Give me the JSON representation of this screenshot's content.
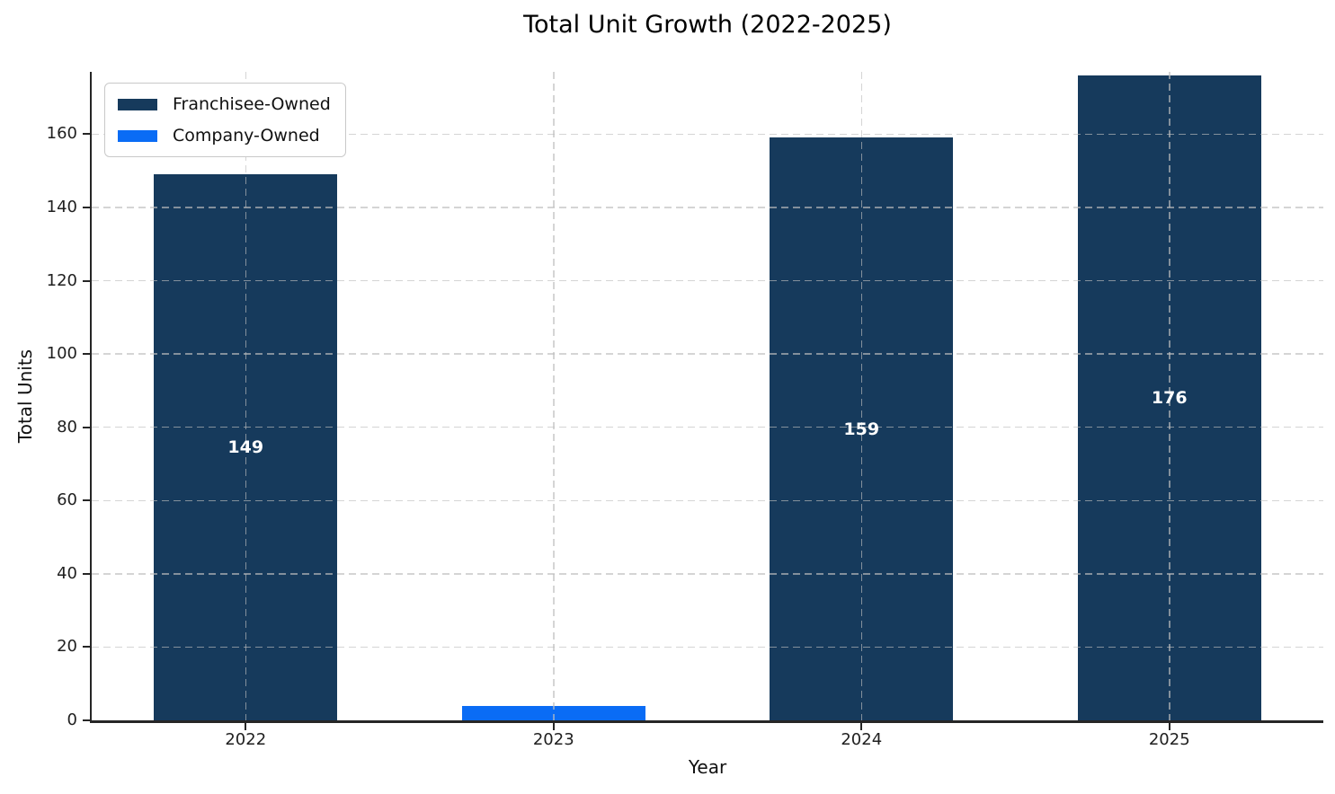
{
  "chart_data": {
    "type": "bar",
    "title": "Total Unit Growth (2022-2025)",
    "xlabel": "Year",
    "ylabel": "Total Units",
    "categories": [
      "2022",
      "2023",
      "2024",
      "2025"
    ],
    "series": [
      {
        "name": "Franchisee-Owned",
        "color": "#163a5c",
        "values": [
          149,
          null,
          159,
          176
        ]
      },
      {
        "name": "Company-Owned",
        "color": "#0a6cf5",
        "values": [
          null,
          4,
          null,
          null
        ]
      }
    ],
    "bar_value_labels": [
      "149",
      "",
      "159",
      "176"
    ],
    "value_label_color": "#ffffff",
    "yticks": [
      0,
      20,
      40,
      60,
      80,
      100,
      120,
      140,
      160
    ],
    "ylim": [
      0,
      177
    ],
    "grid": true,
    "grid_style": "dashed",
    "axis_color": "#262626",
    "legend": {
      "position": "upper left",
      "entries": [
        {
          "label": "Franchisee-Owned",
          "color": "#163a5c"
        },
        {
          "label": "Company-Owned",
          "color": "#0a6cf5"
        }
      ]
    }
  }
}
